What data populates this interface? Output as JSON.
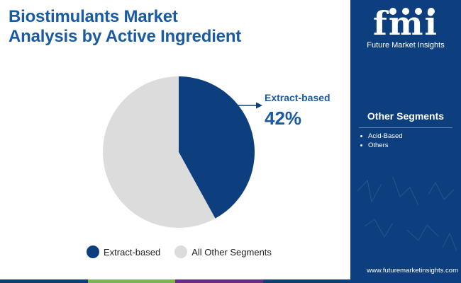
{
  "title": {
    "line1": "Biostimulants Market",
    "line2": "Analysis by Active Ingredient"
  },
  "chart_data": {
    "type": "pie",
    "slices": [
      {
        "label": "Extract-based",
        "value": 42,
        "color": "#0d3f7e"
      },
      {
        "label": "All Other Segments",
        "value": 58,
        "color": "#dcdcdc"
      }
    ],
    "callout": {
      "label": "Extract-based",
      "value_text": "42%"
    }
  },
  "legend": {
    "items": [
      {
        "label": "Extract-based",
        "color": "#0d3f7e"
      },
      {
        "label": "All Other Segments",
        "color": "#dcdcdc"
      }
    ]
  },
  "sidebar": {
    "logo_mark": "fmi",
    "logo_text": "Future Market Insights",
    "segments_title": "Other Segments",
    "segments": [
      "Acid-Based",
      "Others"
    ],
    "website": "www.futuremarketinsights.com"
  },
  "colors": {
    "brand_blue": "#0d3f7e",
    "title_blue": "#1a5aa0",
    "grey_slice": "#dcdcdc",
    "bar": [
      "#0d3f7e",
      "#7db54a",
      "#6a2a8e",
      "#0d3f7e"
    ]
  }
}
